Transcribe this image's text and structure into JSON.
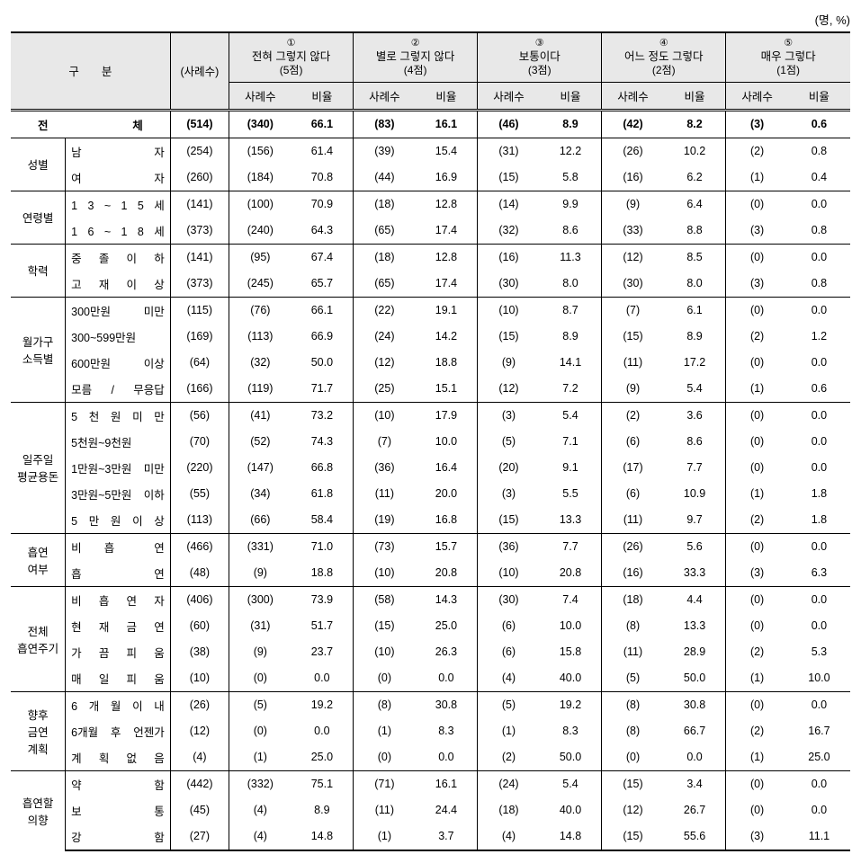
{
  "unit_label": "(명, %)",
  "header": {
    "category": "구　　분",
    "count": "(사례수)",
    "groups": [
      {
        "num": "①",
        "title": "전혀 그렇지 않다",
        "pts": "(5점)"
      },
      {
        "num": "②",
        "title": "별로 그렇지 않다",
        "pts": "(4점)"
      },
      {
        "num": "③",
        "title": "보통이다",
        "pts": "(3점)"
      },
      {
        "num": "④",
        "title": "어느 정도 그렇다",
        "pts": "(2점)"
      },
      {
        "num": "⑤",
        "title": "매우 그렇다",
        "pts": "(1점)"
      }
    ],
    "sub_count": "사례수",
    "sub_ratio": "비율"
  },
  "total": {
    "label": "전　　　체",
    "count": "(514)",
    "cells": [
      "(340)",
      "66.1",
      "(83)",
      "16.1",
      "(46)",
      "8.9",
      "(42)",
      "8.2",
      "(3)",
      "0.6"
    ]
  },
  "groups": [
    {
      "cat": "성별",
      "rows": [
        {
          "label": "남　　　　자",
          "count": "(254)",
          "cells": [
            "(156)",
            "61.4",
            "(39)",
            "15.4",
            "(31)",
            "12.2",
            "(26)",
            "10.2",
            "(2)",
            "0.8"
          ]
        },
        {
          "label": "여　　　　자",
          "count": "(260)",
          "cells": [
            "(184)",
            "70.8",
            "(44)",
            "16.9",
            "(15)",
            "5.8",
            "(16)",
            "6.2",
            "(1)",
            "0.4"
          ]
        }
      ]
    },
    {
      "cat": "연령별",
      "rows": [
        {
          "label": "1 3 ~ 1 5 세",
          "count": "(141)",
          "cells": [
            "(100)",
            "70.9",
            "(18)",
            "12.8",
            "(14)",
            "9.9",
            "(9)",
            "6.4",
            "(0)",
            "0.0"
          ]
        },
        {
          "label": "1 6 ~ 1 8 세",
          "count": "(373)",
          "cells": [
            "(240)",
            "64.3",
            "(65)",
            "17.4",
            "(32)",
            "8.6",
            "(33)",
            "8.8",
            "(3)",
            "0.8"
          ]
        }
      ]
    },
    {
      "cat": "학력",
      "rows": [
        {
          "label": "중 졸 이 하",
          "count": "(141)",
          "cells": [
            "(95)",
            "67.4",
            "(18)",
            "12.8",
            "(16)",
            "11.3",
            "(12)",
            "8.5",
            "(0)",
            "0.0"
          ]
        },
        {
          "label": "고 재 이 상",
          "count": "(373)",
          "cells": [
            "(245)",
            "65.7",
            "(65)",
            "17.4",
            "(30)",
            "8.0",
            "(30)",
            "8.0",
            "(3)",
            "0.8"
          ]
        }
      ]
    },
    {
      "cat": "월가구\n소득별",
      "rows": [
        {
          "label": "300만원 미만",
          "count": "(115)",
          "cells": [
            "(76)",
            "66.1",
            "(22)",
            "19.1",
            "(10)",
            "8.7",
            "(7)",
            "6.1",
            "(0)",
            "0.0"
          ]
        },
        {
          "label": "300~599만원",
          "count": "(169)",
          "cells": [
            "(113)",
            "66.9",
            "(24)",
            "14.2",
            "(15)",
            "8.9",
            "(15)",
            "8.9",
            "(2)",
            "1.2"
          ]
        },
        {
          "label": "600만원 이상",
          "count": "(64)",
          "cells": [
            "(32)",
            "50.0",
            "(12)",
            "18.8",
            "(9)",
            "14.1",
            "(11)",
            "17.2",
            "(0)",
            "0.0"
          ]
        },
        {
          "label": "모름 / 무응답",
          "count": "(166)",
          "cells": [
            "(119)",
            "71.7",
            "(25)",
            "15.1",
            "(12)",
            "7.2",
            "(9)",
            "5.4",
            "(1)",
            "0.6"
          ]
        }
      ]
    },
    {
      "cat": "일주일\n평균용돈",
      "rows": [
        {
          "label": "5 천 원 미 만",
          "count": "(56)",
          "cells": [
            "(41)",
            "73.2",
            "(10)",
            "17.9",
            "(3)",
            "5.4",
            "(2)",
            "3.6",
            "(0)",
            "0.0"
          ]
        },
        {
          "label": "5천원~9천원",
          "count": "(70)",
          "cells": [
            "(52)",
            "74.3",
            "(7)",
            "10.0",
            "(5)",
            "7.1",
            "(6)",
            "8.6",
            "(0)",
            "0.0"
          ]
        },
        {
          "label": "1만원~3만원 미만",
          "count": "(220)",
          "cells": [
            "(147)",
            "66.8",
            "(36)",
            "16.4",
            "(20)",
            "9.1",
            "(17)",
            "7.7",
            "(0)",
            "0.0"
          ]
        },
        {
          "label": "3만원~5만원 이하",
          "count": "(55)",
          "cells": [
            "(34)",
            "61.8",
            "(11)",
            "20.0",
            "(3)",
            "5.5",
            "(6)",
            "10.9",
            "(1)",
            "1.8"
          ]
        },
        {
          "label": "5 만 원 이 상",
          "count": "(113)",
          "cells": [
            "(66)",
            "58.4",
            "(19)",
            "16.8",
            "(15)",
            "13.3",
            "(11)",
            "9.7",
            "(2)",
            "1.8"
          ]
        }
      ]
    },
    {
      "cat": "흡연\n여부",
      "rows": [
        {
          "label": "비　흡　　연",
          "count": "(466)",
          "cells": [
            "(331)",
            "71.0",
            "(73)",
            "15.7",
            "(36)",
            "7.7",
            "(26)",
            "5.6",
            "(0)",
            "0.0"
          ]
        },
        {
          "label": "흡　　　　연",
          "count": "(48)",
          "cells": [
            "(9)",
            "18.8",
            "(10)",
            "20.8",
            "(10)",
            "20.8",
            "(16)",
            "33.3",
            "(3)",
            "6.3"
          ]
        }
      ]
    },
    {
      "cat": "전체\n흡연주기",
      "rows": [
        {
          "label": "비 흡 연 자",
          "count": "(406)",
          "cells": [
            "(300)",
            "73.9",
            "(58)",
            "14.3",
            "(30)",
            "7.4",
            "(18)",
            "4.4",
            "(0)",
            "0.0"
          ]
        },
        {
          "label": "현 재 금 연",
          "count": "(60)",
          "cells": [
            "(31)",
            "51.7",
            "(15)",
            "25.0",
            "(6)",
            "10.0",
            "(8)",
            "13.3",
            "(0)",
            "0.0"
          ]
        },
        {
          "label": "가 끔 피 움",
          "count": "(38)",
          "cells": [
            "(9)",
            "23.7",
            "(10)",
            "26.3",
            "(6)",
            "15.8",
            "(11)",
            "28.9",
            "(2)",
            "5.3"
          ]
        },
        {
          "label": "매 일 피 움",
          "count": "(10)",
          "cells": [
            "(0)",
            "0.0",
            "(0)",
            "0.0",
            "(4)",
            "40.0",
            "(5)",
            "50.0",
            "(1)",
            "10.0"
          ]
        }
      ]
    },
    {
      "cat": "향후\n금연\n계획",
      "rows": [
        {
          "label": "6 개 월 이 내",
          "count": "(26)",
          "cells": [
            "(5)",
            "19.2",
            "(8)",
            "30.8",
            "(5)",
            "19.2",
            "(8)",
            "30.8",
            "(0)",
            "0.0"
          ]
        },
        {
          "label": "6개월 후 언젠가",
          "count": "(12)",
          "cells": [
            "(0)",
            "0.0",
            "(1)",
            "8.3",
            "(1)",
            "8.3",
            "(8)",
            "66.7",
            "(2)",
            "16.7"
          ]
        },
        {
          "label": "계 획 없 음",
          "count": "(4)",
          "cells": [
            "(1)",
            "25.0",
            "(0)",
            "0.0",
            "(2)",
            "50.0",
            "(0)",
            "0.0",
            "(1)",
            "25.0"
          ]
        }
      ]
    },
    {
      "cat": "흡연할\n의향",
      "rows": [
        {
          "label": "약　　　　함",
          "count": "(442)",
          "cells": [
            "(332)",
            "75.1",
            "(71)",
            "16.1",
            "(24)",
            "5.4",
            "(15)",
            "3.4",
            "(0)",
            "0.0"
          ]
        },
        {
          "label": "보　　　　통",
          "count": "(45)",
          "cells": [
            "(4)",
            "8.9",
            "(11)",
            "24.4",
            "(18)",
            "40.0",
            "(12)",
            "26.7",
            "(0)",
            "0.0"
          ]
        },
        {
          "label": "강　　　　함",
          "count": "(27)",
          "cells": [
            "(4)",
            "14.8",
            "(1)",
            "3.7",
            "(4)",
            "14.8",
            "(15)",
            "55.6",
            "(3)",
            "11.1"
          ]
        }
      ]
    }
  ]
}
